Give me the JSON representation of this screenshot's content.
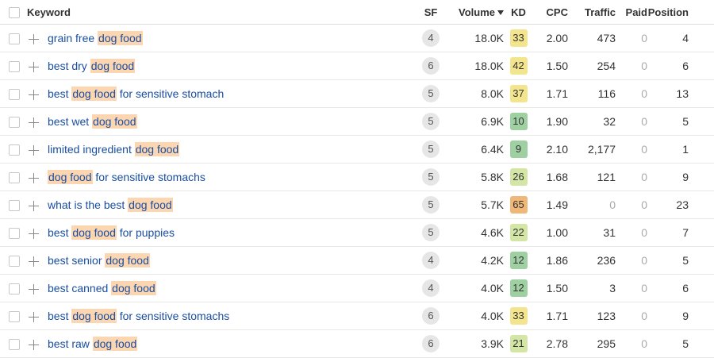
{
  "header": {
    "keyword": "Keyword",
    "sf": "SF",
    "volume": "Volume",
    "kd": "KD",
    "cpc": "CPC",
    "traffic": "Traffic",
    "paid": "Paid",
    "position": "Position",
    "sort_column": "volume",
    "sort_direction": "desc"
  },
  "colors": {
    "keyword_link": "#1a4ea1",
    "highlight": "#fbd6b1",
    "kd_yellow": "#f3e58e",
    "kd_light_green": "#d3e6a6",
    "kd_green": "#9fd0a2",
    "kd_orange": "#f0b878"
  },
  "rows": [
    {
      "kw_pre": "grain free ",
      "kw_hl": "dog food",
      "kw_post": "",
      "sf": "4",
      "volume": "18.0K",
      "kd": "33",
      "kd_color": "#f3e58e",
      "cpc": "2.00",
      "traffic": "473",
      "paid": "0",
      "position": "4"
    },
    {
      "kw_pre": "best dry ",
      "kw_hl": "dog food",
      "kw_post": "",
      "sf": "6",
      "volume": "18.0K",
      "kd": "42",
      "kd_color": "#f3e58e",
      "cpc": "1.50",
      "traffic": "254",
      "paid": "0",
      "position": "6"
    },
    {
      "kw_pre": "best ",
      "kw_hl": "dog food",
      "kw_post": " for sensitive stomach",
      "sf": "5",
      "volume": "8.0K",
      "kd": "37",
      "kd_color": "#f3e58e",
      "cpc": "1.71",
      "traffic": "116",
      "paid": "0",
      "position": "13"
    },
    {
      "kw_pre": "best wet ",
      "kw_hl": "dog food",
      "kw_post": "",
      "sf": "5",
      "volume": "6.9K",
      "kd": "10",
      "kd_color": "#9fd0a2",
      "cpc": "1.90",
      "traffic": "32",
      "paid": "0",
      "position": "5"
    },
    {
      "kw_pre": "limited ingredient ",
      "kw_hl": "dog food",
      "kw_post": "",
      "sf": "5",
      "volume": "6.4K",
      "kd": "9",
      "kd_color": "#9fd0a2",
      "cpc": "2.10",
      "traffic": "2,177",
      "paid": "0",
      "position": "1"
    },
    {
      "kw_pre": "",
      "kw_hl": "dog food",
      "kw_post": " for sensitive stomachs",
      "sf": "5",
      "volume": "5.8K",
      "kd": "26",
      "kd_color": "#d3e6a6",
      "cpc": "1.68",
      "traffic": "121",
      "paid": "0",
      "position": "9"
    },
    {
      "kw_pre": "what is the best ",
      "kw_hl": "dog food",
      "kw_post": "",
      "sf": "5",
      "volume": "5.7K",
      "kd": "65",
      "kd_color": "#f0b878",
      "cpc": "1.49",
      "traffic": "0",
      "paid": "0",
      "position": "23"
    },
    {
      "kw_pre": "best ",
      "kw_hl": "dog food",
      "kw_post": " for puppies",
      "sf": "5",
      "volume": "4.6K",
      "kd": "22",
      "kd_color": "#d3e6a6",
      "cpc": "1.00",
      "traffic": "31",
      "paid": "0",
      "position": "7"
    },
    {
      "kw_pre": "best senior ",
      "kw_hl": "dog food",
      "kw_post": "",
      "sf": "4",
      "volume": "4.2K",
      "kd": "12",
      "kd_color": "#9fd0a2",
      "cpc": "1.86",
      "traffic": "236",
      "paid": "0",
      "position": "5"
    },
    {
      "kw_pre": "best canned ",
      "kw_hl": "dog food",
      "kw_post": "",
      "sf": "4",
      "volume": "4.0K",
      "kd": "12",
      "kd_color": "#9fd0a2",
      "cpc": "1.50",
      "traffic": "3",
      "paid": "0",
      "position": "6"
    },
    {
      "kw_pre": "best ",
      "kw_hl": "dog food",
      "kw_post": " for sensitive stomachs",
      "sf": "6",
      "volume": "4.0K",
      "kd": "33",
      "kd_color": "#f3e58e",
      "cpc": "1.71",
      "traffic": "123",
      "paid": "0",
      "position": "9"
    },
    {
      "kw_pre": "best raw ",
      "kw_hl": "dog food",
      "kw_post": "",
      "sf": "6",
      "volume": "3.9K",
      "kd": "21",
      "kd_color": "#d3e6a6",
      "cpc": "2.78",
      "traffic": "295",
      "paid": "0",
      "position": "5"
    }
  ]
}
